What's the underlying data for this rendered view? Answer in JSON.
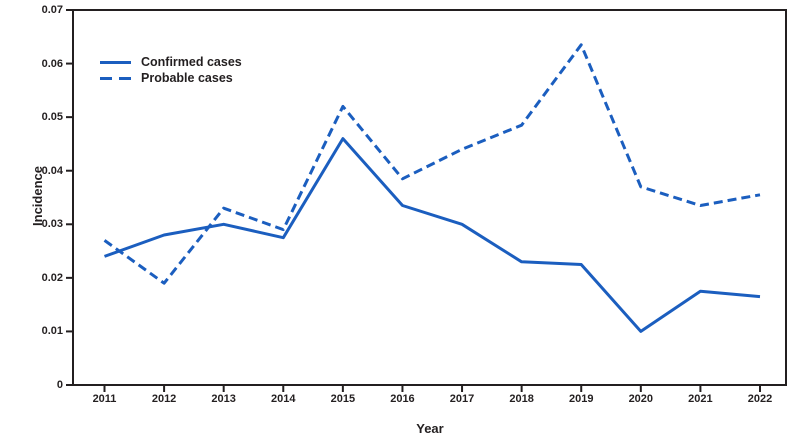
{
  "chart_data": {
    "type": "line",
    "title": "",
    "xlabel": "Year",
    "ylabel": "Incidence",
    "categories": [
      "2011",
      "2012",
      "2013",
      "2014",
      "2015",
      "2016",
      "2017",
      "2018",
      "2019",
      "2020",
      "2021",
      "2022"
    ],
    "ylim": [
      0,
      0.07
    ],
    "ytick_values": [
      0,
      0.01,
      0.02,
      0.03,
      0.04,
      0.05,
      0.06,
      0.07
    ],
    "ytick_labels": [
      "0",
      "0.01",
      "0.02",
      "0.03",
      "0.04",
      "0.05",
      "0.06",
      "0.07"
    ],
    "grid": false,
    "legend_position": "top-left-inside",
    "line_color": "#1b5ebf",
    "axis_color": "#231f20",
    "series": [
      {
        "name": "Confirmed cases",
        "style": "solid",
        "values": [
          0.024,
          0.028,
          0.03,
          0.0275,
          0.046,
          0.0335,
          0.03,
          0.023,
          0.0225,
          0.01,
          0.0175,
          0.0165
        ]
      },
      {
        "name": "Probable cases",
        "style": "dashed",
        "values": [
          0.027,
          0.019,
          0.033,
          0.029,
          0.052,
          0.0385,
          0.044,
          0.0485,
          0.0635,
          0.037,
          0.0335,
          0.0355
        ]
      }
    ]
  }
}
